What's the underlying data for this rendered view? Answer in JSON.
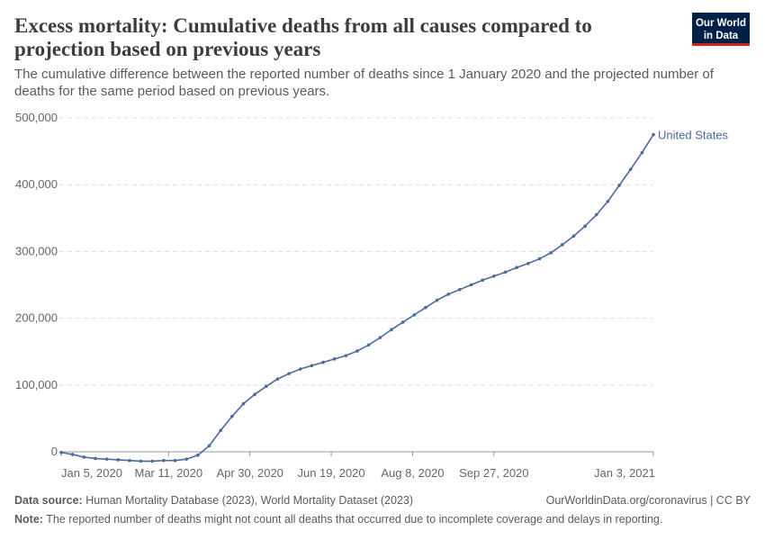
{
  "logo": [
    "Our World",
    "in Data"
  ],
  "chart_data": {
    "type": "line",
    "title": [
      "Excess mortality: Cumulative deaths from all causes compared to",
      "projection based on previous years"
    ],
    "subtitle": [
      "The cumulative difference between the reported number of deaths since 1 January 2020 and the projected number of",
      "deaths for the same period based on previous years."
    ],
    "x": [
      "2020-01-05",
      "2020-01-12",
      "2020-01-19",
      "2020-01-26",
      "2020-02-02",
      "2020-02-09",
      "2020-02-16",
      "2020-02-23",
      "2020-03-01",
      "2020-03-08",
      "2020-03-15",
      "2020-03-22",
      "2020-03-29",
      "2020-04-05",
      "2020-04-12",
      "2020-04-19",
      "2020-04-26",
      "2020-05-03",
      "2020-05-10",
      "2020-05-17",
      "2020-05-24",
      "2020-05-31",
      "2020-06-07",
      "2020-06-14",
      "2020-06-21",
      "2020-06-28",
      "2020-07-05",
      "2020-07-12",
      "2020-07-19",
      "2020-07-26",
      "2020-08-02",
      "2020-08-09",
      "2020-08-16",
      "2020-08-23",
      "2020-08-30",
      "2020-09-06",
      "2020-09-13",
      "2020-09-20",
      "2020-09-27",
      "2020-10-04",
      "2020-10-11",
      "2020-10-18",
      "2020-10-25",
      "2020-11-01",
      "2020-11-08",
      "2020-11-15",
      "2020-11-22",
      "2020-11-29",
      "2020-12-06",
      "2020-12-13",
      "2020-12-20",
      "2020-12-27",
      "2021-01-03"
    ],
    "series": [
      {
        "name": "United States",
        "color": "#4c6a9c",
        "values": [
          -1000,
          -4000,
          -8000,
          -10000,
          -11000,
          -12000,
          -13000,
          -14000,
          -14000,
          -13000,
          -13000,
          -11000,
          -5000,
          9000,
          32000,
          53000,
          72000,
          86000,
          98000,
          109000,
          117000,
          124000,
          129000,
          134000,
          139000,
          144000,
          151000,
          160000,
          171000,
          183000,
          194000,
          205000,
          216000,
          227000,
          236000,
          243000,
          250000,
          257000,
          263000,
          269000,
          276000,
          282000,
          289000,
          298000,
          310000,
          323000,
          338000,
          355000,
          375000,
          399000,
          423000,
          448000,
          475000
        ]
      }
    ],
    "xlim": [
      "2020-01-05",
      "2021-01-03"
    ],
    "xticks": [
      {
        "value": "2020-01-05",
        "label": "Jan 5, 2020"
      },
      {
        "value": "2020-03-11",
        "label": "Mar 11, 2020"
      },
      {
        "value": "2020-04-30",
        "label": "Apr 30, 2020"
      },
      {
        "value": "2020-06-19",
        "label": "Jun 19, 2020"
      },
      {
        "value": "2020-08-08",
        "label": "Aug 8, 2020"
      },
      {
        "value": "2020-09-27",
        "label": "Sep 27, 2020"
      },
      {
        "value": "2021-01-03",
        "label": "Jan 3, 2021"
      }
    ],
    "ylim": [
      0,
      500000
    ],
    "yticks": [
      0,
      {
        "value": 100000,
        "label": "100,000"
      },
      {
        "value": 200000,
        "label": "200,000"
      },
      {
        "value": 300000,
        "label": "300,000"
      },
      {
        "value": 400000,
        "label": "400,000"
      },
      {
        "value": 500000,
        "label": "500,000"
      }
    ],
    "grid": true,
    "source_label": "Data source:",
    "source": "Human Mortality Database (2023), World Mortality Dataset (2023)",
    "url": "OurWorldinData.org/coronavirus | CC BY",
    "note_label": "Note:",
    "note": "The reported number of deaths might not count all deaths that occurred due to incomplete coverage and delays in reporting."
  }
}
